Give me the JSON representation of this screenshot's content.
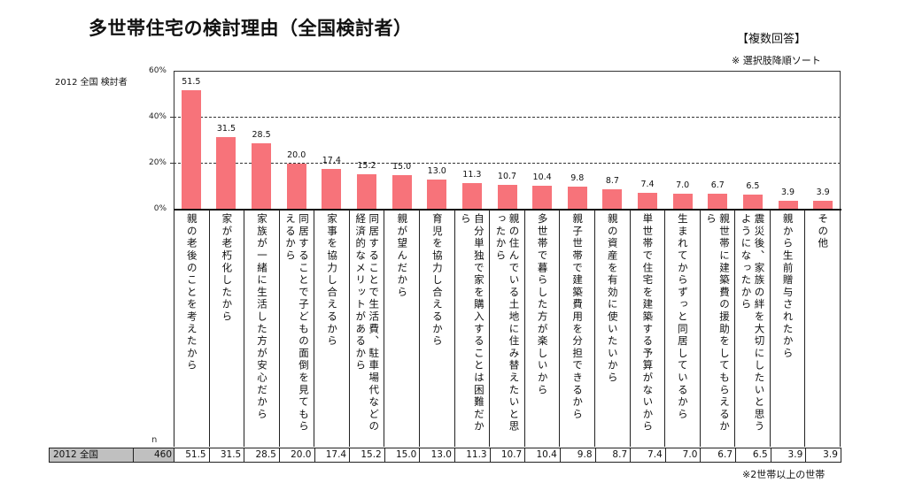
{
  "header": {
    "title": "多世帯住宅の検討理由（全国検討者）",
    "answer_type": "【複数回答】",
    "sort_note": "※ 選択肢降順ソート"
  },
  "series_label": "2012 全国 検討者",
  "y_ticks": [
    "60%",
    "40%",
    "20%",
    "0%"
  ],
  "n_label": "n",
  "table": {
    "row_label": "2012 全国",
    "n": "460",
    "values": [
      "51.5",
      "31.5",
      "28.5",
      "20.0",
      "17.4",
      "15.2",
      "15.0",
      "13.0",
      "11.3",
      "10.7",
      "10.4",
      "9.8",
      "8.7",
      "7.4",
      "7.0",
      "6.7",
      "6.5",
      "3.9",
      "3.9"
    ]
  },
  "footnote": "※2世帯以上の世帯",
  "colors": {
    "bar": "#f7737a",
    "table_header_bg": "#c0c0c0",
    "frame": "#333333"
  },
  "chart_data": {
    "type": "bar",
    "title": "多世帯住宅の検討理由（全国検討者）",
    "subtitle": "【複数回答】 ※ 選択肢降順ソート",
    "series": [
      {
        "name": "2012 全国 検討者",
        "n": 460,
        "values": [
          51.5,
          31.5,
          28.5,
          20.0,
          17.4,
          15.2,
          15.0,
          13.0,
          11.3,
          10.7,
          10.4,
          9.8,
          8.7,
          7.4,
          7.0,
          6.7,
          6.5,
          3.9,
          3.9
        ]
      }
    ],
    "categories": [
      "親の老後のことを考えたから",
      "家が老朽化したから",
      "家族が一緒に生活した方が安心だから",
      "同居することで子どもの面倒を見てもらえるから",
      "家事を協力し合えるから",
      "同居することで生活費、駐車場代などの経済的なメリットがあるから",
      "親が望んだから",
      "育児を協力し合えるから",
      "自分単独で家を購入することは困難だから",
      "親の住んでいる土地に住み替えたいと思ったから",
      "多世帯で暮らした方が楽しいから",
      "親子世帯で建築費用を分担できるから",
      "親の資産を有効に使いたいから",
      "単世帯で住宅を建築する予算がないから",
      "生まれてからずっと同居しているから",
      "親世帯に建築費の援助をしてもらえるから",
      "震災後、家族の絆を大切にしたいと思うようになったから",
      "親から生前贈与されたから",
      "その他"
    ],
    "xlabel": "",
    "ylabel": "%",
    "ylim": [
      0,
      60
    ],
    "yticks": [
      0,
      20,
      40,
      60
    ],
    "grid": "dashed horizontal at 20%, 40%",
    "legend": "none",
    "footnote": "※2世帯以上の世帯"
  }
}
